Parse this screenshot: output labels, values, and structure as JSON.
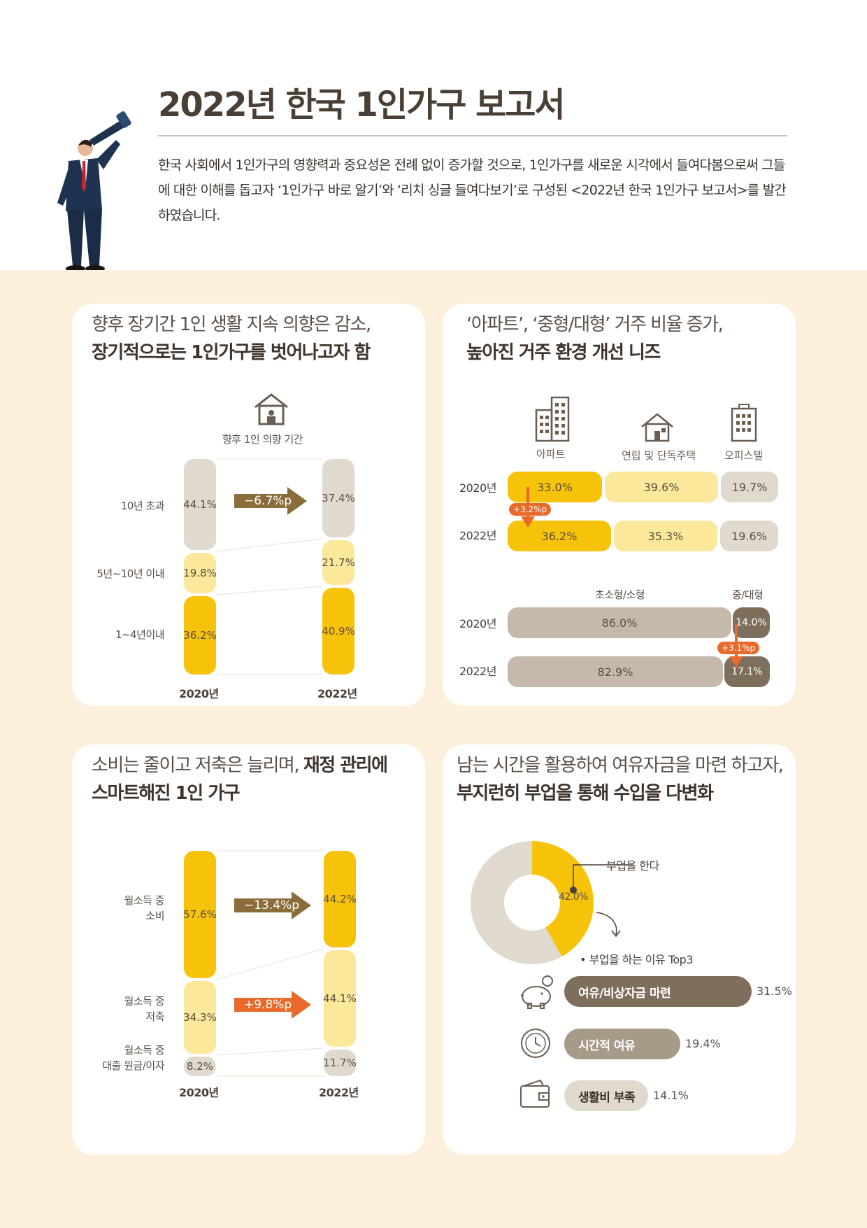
{
  "header": {
    "title": "2022년 한국 1인가구 보고서",
    "intro": "한국 사회에서 1인가구의 영향력과 중요성은 전례 없이 증가할 것으로, 1인가구를 새로운 시각에서 들여다봄으로써 그들에 대한 이해를 돕고자 ‘1인가구 바로 알기’와 ‘리치 싱글 들여다보기’로 구성된 <2022년 한국 1인가구 보고서>를 발간하였습니다."
  },
  "colors": {
    "background": "#fcf0dc",
    "yellow": "#f7c20a",
    "light_yellow": "#fbe89a",
    "beige": "#e0d9cd",
    "taupe": "#c5b9ab",
    "dark_brown": "#7e6e5c",
    "orange": "#e8692a",
    "olive_arrow": "#8a6d3b"
  },
  "card1": {
    "title_line1": "향후 장기간 1인 생활 지속 의향은 감소,",
    "title_line2": "장기적으로는 1인가구를 벗어나고자 함",
    "icon": "house-person-icon",
    "icon_label": "향후 1인 의향 기간",
    "arrow_label": "−6.7%p",
    "chart_data": {
      "type": "bar",
      "stacked": true,
      "categories": [
        "2020년",
        "2022년"
      ],
      "series": [
        {
          "name": "10년 초과",
          "values": [
            44.1,
            37.4
          ],
          "labels": [
            "44.1%",
            "37.4%"
          ]
        },
        {
          "name": "5년~10년 이내",
          "values": [
            19.8,
            21.7
          ],
          "labels": [
            "19.8%",
            "21.7%"
          ]
        },
        {
          "name": "1~4년이내",
          "values": [
            36.2,
            40.9
          ],
          "labels": [
            "36.2%",
            "40.9%"
          ]
        }
      ]
    }
  },
  "card2": {
    "title_line1": "‘아파트’, ‘중형/대형’ 거주 비율 증가,",
    "title_line2": "높아진 거주 환경 개선 니즈",
    "icons": [
      {
        "name": "apartment-icon",
        "label": "아파트"
      },
      {
        "name": "house-icon",
        "label": "연립 및 단독주택"
      },
      {
        "name": "office-building-icon",
        "label": "오피스텔"
      }
    ],
    "housing_badge": "+3.2%p",
    "size_badge": "+3.1%p",
    "chart_data": [
      {
        "type": "bar",
        "orientation": "horizontal",
        "stacked": true,
        "categories": [
          "2020년",
          "2022년"
        ],
        "series": [
          {
            "name": "아파트",
            "values": [
              33.0,
              36.2
            ],
            "labels": [
              "33.0%",
              "36.2%"
            ]
          },
          {
            "name": "연립 및 단독주택",
            "values": [
              39.6,
              35.3
            ],
            "labels": [
              "39.6%",
              "35.3%"
            ]
          },
          {
            "name": "오피스텔",
            "values": [
              19.7,
              19.6
            ],
            "labels": [
              "19.7%",
              "19.6%"
            ]
          }
        ]
      },
      {
        "type": "bar",
        "orientation": "horizontal",
        "stacked": true,
        "categories": [
          "2020년",
          "2022년"
        ],
        "series": [
          {
            "name": "초소형/소형",
            "values": [
              86.0,
              82.9
            ],
            "labels": [
              "86.0%",
              "82.9%"
            ]
          },
          {
            "name": "중/대형",
            "values": [
              14.0,
              17.1
            ],
            "labels": [
              "14.0%",
              "17.1%"
            ]
          }
        ]
      }
    ]
  },
  "card3": {
    "title_plain": "소비는 줄이고 저축은 늘리며, ",
    "title_bold": "재정 관리에",
    "title_line2": "스마트해진 1인 가구",
    "arrow1_label": "−13.4%p",
    "arrow2_label": "+9.8%p",
    "labels": {
      "spend_1": "월소득 중",
      "spend_2": "소비",
      "save_1": "월소득 중",
      "save_2": "저축",
      "loan_1": "월소득 중",
      "loan_2": "대출 원금/이자"
    },
    "chart_data": {
      "type": "bar",
      "stacked": true,
      "categories": [
        "2020년",
        "2022년"
      ],
      "series": [
        {
          "name": "월소득 중 소비",
          "values": [
            57.6,
            44.2
          ],
          "labels": [
            "57.6%",
            "44.2%"
          ]
        },
        {
          "name": "월소득 중 저축",
          "values": [
            34.3,
            44.1
          ],
          "labels": [
            "34.3%",
            "44.1%"
          ]
        },
        {
          "name": "월소득 중 대출 원금/이자",
          "values": [
            8.2,
            11.7
          ],
          "labels": [
            "8.2%",
            "11.7%"
          ]
        }
      ]
    }
  },
  "card4": {
    "title_line1": "남는 시간을 활용하여 여유자금을 마련 하고자,",
    "title_line2": "부지런히 부업을 통해 수입을 다변화",
    "donut_label": "부업을 한다",
    "donut_value_label": "42.0%",
    "reasons_title": "• 부업을 하는 이유 Top3",
    "reasons_icons": [
      "piggy-bank-icon",
      "clock-icon",
      "wallet-icon"
    ],
    "chart_data": [
      {
        "type": "pie",
        "donut": true,
        "categories": [
          "부업을 한다",
          ""
        ],
        "values": [
          42.0,
          58.0
        ]
      },
      {
        "type": "bar",
        "orientation": "horizontal",
        "categories": [
          "여유/비상자금 마련",
          "시간적 여유",
          "생활비 부족"
        ],
        "values": [
          31.5,
          19.4,
          14.1
        ],
        "labels": [
          "31.5%",
          "19.4%",
          "14.1%"
        ]
      }
    ]
  }
}
